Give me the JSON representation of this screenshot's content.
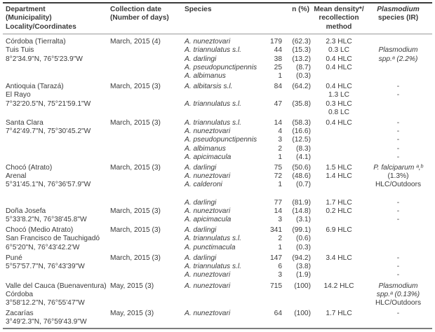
{
  "table": {
    "columns": [
      {
        "id": "location",
        "lines": [
          "Department",
          "(Municipality)",
          "Locality/Coordinates"
        ]
      },
      {
        "id": "collection_date",
        "lines": [
          "Collection date",
          "(Number of days)"
        ]
      },
      {
        "id": "species",
        "lines": [
          "Species"
        ]
      },
      {
        "id": "n_percent",
        "lines": [
          "n (%)"
        ]
      },
      {
        "id": "mean_density",
        "lines": [
          "Mean density*/",
          "recollection",
          "method"
        ]
      },
      {
        "id": "plasmodium",
        "lines": [
          "Plasmodium",
          "species (IR)"
        ]
      }
    ],
    "groups": [
      {
        "id": "cordoba-tierralta",
        "rows": [
          {
            "location": "Córdoba (Tierralta)",
            "date": "March, 2015 (4)",
            "species": "A. nuneztovari",
            "n_count": "179",
            "n_pct": "(62.3)",
            "density": "2.3 HLC",
            "plasmodium": ""
          },
          {
            "location": "Tuis Tuis",
            "date": "",
            "species": "A. triannulatus s.l.",
            "n_count": "44",
            "n_pct": "(15.3)",
            "density": "0.3 LC",
            "plasmodium": "Plasmodium"
          },
          {
            "location": "8°2'34.9\"N, 76°5'23.9\"W",
            "date": "",
            "species": "A. darlingi",
            "n_count": "38",
            "n_pct": "(13.2)",
            "density": "0.4 HLC",
            "plasmodium": "spp.ᵃ (2.2%)"
          },
          {
            "location": "",
            "date": "",
            "species": "A. pseudopunctipennis",
            "n_count": "25",
            "n_pct": "(8.7)",
            "density": "0.4 HLC",
            "plasmodium": ""
          },
          {
            "location": "",
            "date": "",
            "species": "A. albimanus",
            "n_count": "1",
            "n_pct": "(0.3)",
            "density": "",
            "plasmodium": ""
          }
        ]
      },
      {
        "id": "antioquia-taraza",
        "rows": [
          {
            "location": "Antioquia (Tarazá)",
            "date": "March, 2015 (3)",
            "species": "A. albitarsis s.l.",
            "n_count": "84",
            "n_pct": "(64.2)",
            "density": "0.4 HLC",
            "plasmodium": "-"
          },
          {
            "location": "El Rayo",
            "date": "",
            "species": "",
            "n_count": "",
            "n_pct": "",
            "density": "1.3 LC",
            "plasmodium": "-"
          },
          {
            "location": "7°32'20.5\"N, 75°21'59.1\"W",
            "date": "",
            "species": "A. triannulatus s.l.",
            "n_count": "47",
            "n_pct": "(35.8)",
            "density": "0.3 HLC",
            "plasmodium": ""
          },
          {
            "location": "",
            "date": "",
            "species": "",
            "n_count": "",
            "n_pct": "",
            "density": "0.8 LC",
            "plasmodium": ""
          }
        ]
      },
      {
        "id": "santa-clara",
        "rows": [
          {
            "location": "Santa Clara",
            "date": "March, 2015 (3)",
            "species": "A. triannulatus s.l.",
            "n_count": "14",
            "n_pct": "(58.3)",
            "density": "0.4 HLC",
            "plasmodium": "-"
          },
          {
            "location": "7°42'49.7\"N, 75°30'45.2\"W",
            "date": "",
            "species": "A. nuneztovari",
            "n_count": "4",
            "n_pct": "(16.6)",
            "density": "",
            "plasmodium": "-"
          },
          {
            "location": "",
            "date": "",
            "species": "A. pseudopunctipennis",
            "n_count": "3",
            "n_pct": "(12.5)",
            "density": "",
            "plasmodium": "-"
          },
          {
            "location": "",
            "date": "",
            "species": "A. albimanus",
            "n_count": "2",
            "n_pct": "(8.3)",
            "density": "",
            "plasmodium": "-"
          },
          {
            "location": "",
            "date": "",
            "species": "A. apicimacula",
            "n_count": "1",
            "n_pct": "(4.1)",
            "density": "",
            "plasmodium": "-"
          }
        ]
      },
      {
        "id": "choco-atrato",
        "rows": [
          {
            "location": "Chocó (Atrato)",
            "date": "March, 2015 (3)",
            "species": "A. darlingi",
            "n_count": "75",
            "n_pct": "(50.6)",
            "density": "1.5 HLC",
            "plasmodium": "P. falciparum ᵃ,ᵇ"
          },
          {
            "location": "Arenal",
            "date": "",
            "species": "A. nuneztovari",
            "n_count": "72",
            "n_pct": "(48.6)",
            "density": "1.4 HLC",
            "plasmodium": "(1.3%)"
          },
          {
            "location": "5°31'45.1\"N, 76°36'57.9\"W",
            "date": "",
            "species": "A. calderoni",
            "n_count": "1",
            "n_pct": "(0.7)",
            "density": "",
            "plasmodium": "HLC/Outdoors"
          }
        ]
      },
      {
        "id": "dona-josefa",
        "rows": [
          {
            "location": "",
            "date": "",
            "species": "A. darlingi",
            "n_count": "77",
            "n_pct": "(81.9)",
            "density": "1.7 HLC",
            "plasmodium": "-"
          },
          {
            "location": "Doña Josefa",
            "date": "March, 2015 (3)",
            "species": "A. nuneztovari",
            "n_count": "14",
            "n_pct": "(14.8)",
            "density": "0.2 HLC",
            "plasmodium": "-"
          },
          {
            "location": "5°33'8.2\"N, 76°38'45.8\"W",
            "date": "",
            "species": "A. apicimacula",
            "n_count": "3",
            "n_pct": "(3.1)",
            "density": "",
            "plasmodium": "-"
          }
        ]
      },
      {
        "id": "choco-medio-atrato",
        "rows": [
          {
            "location": "Chocó (Medio Atrato)",
            "date": "March, 2015 (3)",
            "species": "A. darlingi",
            "n_count": "341",
            "n_pct": "(99.1)",
            "density": "6.9 HLC",
            "plasmodium": ""
          },
          {
            "location": "San Francisco de Tauchigadó",
            "date": "",
            "species": "A. triannulatus s.l.",
            "n_count": "2",
            "n_pct": "(0.6)",
            "density": "",
            "plasmodium": ""
          },
          {
            "location": "6°5'20\"N, 76°43'42.2'W",
            "date": "",
            "species": "A. punctimacula",
            "n_count": "1",
            "n_pct": "(0.3)",
            "density": "",
            "plasmodium": ""
          }
        ]
      },
      {
        "id": "pune",
        "rows": [
          {
            "location": "Puné",
            "date": "March, 2015 (3)",
            "species": "A. darlingi",
            "n_count": "147",
            "n_pct": "(94.2)",
            "density": "3.4 HLC",
            "plasmodium": "-"
          },
          {
            "location": "5°57'57.7\"N, 76°43'39\"W",
            "date": "",
            "species": "A. triannulatus s.l.",
            "n_count": "6",
            "n_pct": "(3.8)",
            "density": "",
            "plasmodium": "-"
          },
          {
            "location": "",
            "date": "",
            "species": "A. nuneztovari",
            "n_count": "3",
            "n_pct": "(1.9)",
            "density": "",
            "plasmodium": "-"
          }
        ]
      },
      {
        "id": "valle-del-cauca-buenaventura",
        "rows": [
          {
            "location": "Valle del Cauca (Buenaventura)",
            "date": "May, 2015 (3)",
            "species": "A. nuneztovari",
            "n_count": "715",
            "n_pct": "(100)",
            "density": "14.2 HLC",
            "plasmodium": "Plasmodium"
          },
          {
            "location": "Córdoba",
            "date": "",
            "species": "",
            "n_count": "",
            "n_pct": "",
            "density": "",
            "plasmodium": "spp.ᵃ (0.13%)"
          },
          {
            "location": "3°58'12.2\"N, 76°55'47\"W",
            "date": "",
            "species": "",
            "n_count": "",
            "n_pct": "",
            "density": "",
            "plasmodium": "HLC/Outdoors"
          }
        ]
      },
      {
        "id": "zacarias",
        "rows": [
          {
            "location": "Zacarías",
            "date": "May, 2015 (3)",
            "species": "A. nuneztovari",
            "n_count": "64",
            "n_pct": "(100)",
            "density": "1.7 HLC",
            "plasmodium": "-"
          },
          {
            "location": "3°49'2.3\"N, 76°59'43.9\"W",
            "date": "",
            "species": "",
            "n_count": "",
            "n_pct": "",
            "density": "",
            "plasmodium": ""
          }
        ]
      }
    ]
  }
}
